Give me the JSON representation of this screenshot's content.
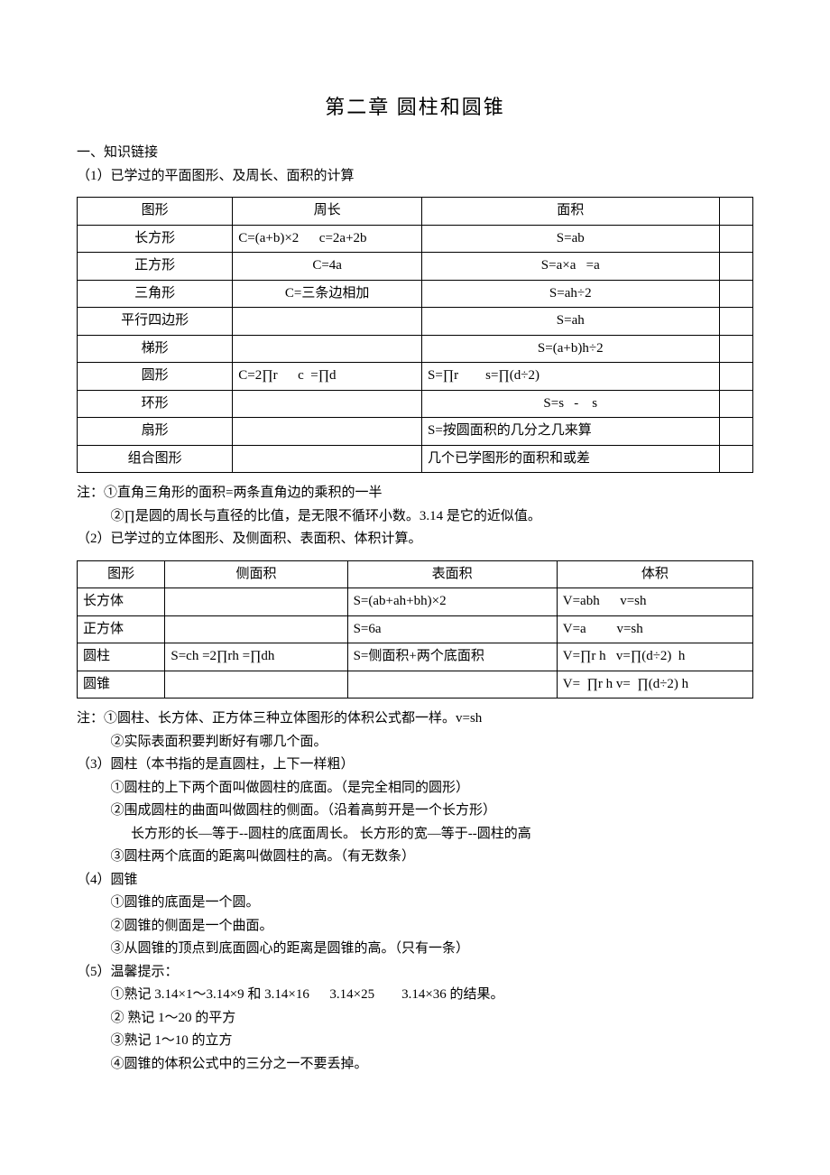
{
  "title": "第二章  圆柱和圆锥",
  "section1": {
    "head": "一、知识链接",
    "sub1": "（1）已学过的平面图形、及周长、面积的计算",
    "table": {
      "header": [
        "图形",
        "周长",
        "面积",
        ""
      ],
      "rows": [
        [
          "长方形",
          "C=(a+b)×2      c=2a+2b",
          "S=ab",
          ""
        ],
        [
          "正方形",
          "C=4a",
          "S=a×a   =a",
          ""
        ],
        [
          "三角形",
          "C=三条边相加",
          "S=ah÷2",
          ""
        ],
        [
          "平行四边形",
          "",
          "S=ah",
          ""
        ],
        [
          "梯形",
          "",
          "S=(a+b)h÷2",
          ""
        ],
        [
          "圆形",
          "C=2∏r      c  =∏d",
          "S=∏r        s=∏(d÷2)",
          ""
        ],
        [
          "环形",
          "",
          "S=s   -    s",
          ""
        ],
        [
          "扇形",
          "",
          "S=按圆面积的几分之几来算",
          ""
        ],
        [
          "组合图形",
          "",
          "几个已学图形的面积和或差",
          ""
        ]
      ]
    },
    "note1": "注：①直角三角形的面积=两条直角边的乘积的一半",
    "note2": "②∏是圆的周长与直径的比值，是无限不循环小数。3.14 是它的近似值。"
  },
  "section2": {
    "head": "（2）已学过的立体图形、及侧面积、表面积、体积计算。",
    "table": {
      "header": [
        "图形",
        "侧面积",
        "表面积",
        "体积"
      ],
      "rows": [
        [
          "长方体",
          "",
          "S=(ab+ah+bh)×2",
          "V=abh      v=sh"
        ],
        [
          "正方体",
          "",
          "S=6a",
          "V=a         v=sh"
        ],
        [
          "圆柱",
          "S=ch =2∏rh =∏dh",
          "S=侧面积+两个底面积",
          "V=∏r h   v=∏(d÷2)  h"
        ],
        [
          "圆锥",
          "",
          "",
          "V=  ∏r h v=  ∏(d÷2) h"
        ]
      ]
    },
    "note1": "注：①圆柱、长方体、正方体三种立体图形的体积公式都一样。v=sh",
    "note2": "②实际表面积要判断好有哪几个面。"
  },
  "section3": {
    "head": "（3）圆柱（本书指的是直圆柱，上下一样粗）",
    "l1": "①圆柱的上下两个面叫做圆柱的底面。（是完全相同的圆形）",
    "l2": "②围成圆柱的曲面叫做圆柱的侧面。（沿着高剪开是一个长方形）",
    "l3": "长方形的长—等于--圆柱的底面周长。  长方形的宽—等于--圆柱的高",
    "l4": "③圆柱两个底面的距离叫做圆柱的高。（有无数条）"
  },
  "section4": {
    "head": "（4）圆锥",
    "l1": "①圆锥的底面是一个圆。",
    "l2": "②圆锥的侧面是一个曲面。",
    "l3": "③从圆锥的顶点到底面圆心的距离是圆锥的高。（只有一条）"
  },
  "section5": {
    "head": "（5）温馨提示：",
    "l1": "①熟记 3.14×1～3.14×9 和 3.14×16      3.14×25        3.14×36 的结果。",
    "l2": "②  熟记 1～20 的平方",
    "l3": "③熟记 1～10 的立方",
    "l4": "④圆锥的体积公式中的三分之一不要丢掉。"
  }
}
